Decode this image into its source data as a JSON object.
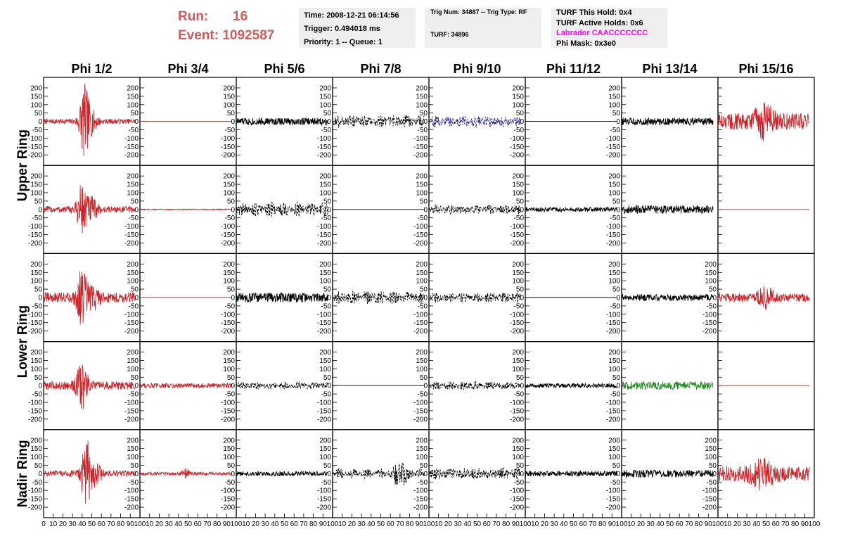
{
  "header": {
    "run_label": "Run:",
    "run_value": "16",
    "event_label": "Event:",
    "event_value": "1092587"
  },
  "info": {
    "time": "Time: 2008-12-21 06:14:56",
    "trigger": "Trigger: 0.494018 ms",
    "priority": "Priority: 1 -- Queue: 1",
    "trig_num": "Trig Num: 34887 -- Trig Type: RF",
    "turf": "TURF: 34896",
    "turf_this_hold": "TURF This Hold: 0x4",
    "turf_active_holds": "TURF Active Holds: 0x6",
    "labrador": "Labrador CAACCCCCCC",
    "phi_mask": "Phi Mask: 0x3e0"
  },
  "colors": {
    "red": "#c8282d",
    "black": "#000000",
    "blue": "#2b2b8c",
    "green": "#228b22",
    "accent": "#cd5c5c",
    "magenta": "#ff00ff"
  },
  "chart_data": {
    "type": "line",
    "columns": [
      "Phi 1/2",
      "Phi 3/4",
      "Phi 5/6",
      "Phi 7/8",
      "Phi 9/10",
      "Phi 11/12",
      "Phi 13/14",
      "Phi 15/16"
    ],
    "rows": [
      "Upper Ring",
      "Upper Ring",
      "Lower Ring",
      "Lower Ring",
      "Nadir Ring"
    ],
    "row_labels": [
      {
        "text": "Upper Ring",
        "rows": [
          0,
          1
        ]
      },
      {
        "text": "Lower Ring",
        "rows": [
          2,
          3
        ]
      },
      {
        "text": "Nadir Ring",
        "rows": [
          4,
          4
        ]
      }
    ],
    "xlim": [
      0,
      100
    ],
    "ylim": [
      -225,
      225
    ],
    "y_ticks": [
      -200,
      -150,
      -100,
      -50,
      0,
      50,
      100,
      150,
      200
    ],
    "x_ticks": [
      0,
      10,
      20,
      30,
      40,
      50,
      60,
      70,
      80,
      90,
      100
    ],
    "x_tick_labels": [
      [
        "0",
        "10",
        "20",
        "30",
        "40",
        "50",
        "60",
        "70",
        "80",
        "90",
        "100"
      ],
      [
        "10",
        "20",
        "30",
        "40",
        "50",
        "60",
        "70",
        "80",
        "90",
        "100"
      ],
      [
        "10",
        "20",
        "30",
        "40",
        "50",
        "60",
        "70",
        "80",
        "90",
        "100"
      ],
      [
        "10",
        "20",
        "30",
        "40",
        "50",
        "60",
        "70",
        "80",
        "90",
        "100"
      ],
      [
        "10",
        "20",
        "30",
        "40",
        "50",
        "60",
        "70",
        "80",
        "90",
        "100"
      ],
      [
        "10",
        "20",
        "30",
        "40",
        "50",
        "60",
        "70",
        "80",
        "90",
        "100"
      ],
      [
        "10",
        "20",
        "30",
        "40",
        "50",
        "60",
        "70",
        "80",
        "90",
        "100"
      ],
      [
        "10",
        "20",
        "30",
        "40",
        "50",
        "60",
        "70",
        "80",
        "90",
        "100"
      ]
    ],
    "x_extent": [
      0,
      95
    ],
    "hidden_y_labels": [
      [
        0,
        7
      ],
      [
        1,
        7
      ],
      [
        3,
        7
      ]
    ],
    "panels": [
      [
        {
          "color": "red",
          "style": "solid",
          "amp": 15,
          "burst": {
            "center": 42,
            "width": 5,
            "amp": 210
          },
          "burst2": {
            "center": 50,
            "width": 6,
            "amp": 60
          }
        },
        {
          "color": "red",
          "style": "solid",
          "amp": 0
        },
        {
          "color": "black",
          "style": "solid",
          "amp": 22
        },
        {
          "color": "black",
          "style": "dashed",
          "amp": 40,
          "mod": 0.6
        },
        {
          "color": "blue",
          "style": "dashed",
          "amp": 35,
          "mod": 0.5
        },
        {
          "color": "black",
          "style": "solid",
          "amp": 0
        },
        {
          "color": "black",
          "style": "solid",
          "amp": 22
        },
        {
          "color": "red",
          "style": "solid",
          "amp": 50,
          "burst": {
            "center": 48,
            "width": 10,
            "amp": 75
          }
        }
      ],
      [
        {
          "color": "red",
          "style": "solid",
          "amp": 20,
          "burst": {
            "center": 40,
            "width": 5,
            "amp": 170
          },
          "burst2": {
            "center": 50,
            "width": 6,
            "amp": 60
          }
        },
        {
          "color": "red",
          "style": "solid",
          "amp": 3
        },
        {
          "color": "black",
          "style": "dashed",
          "amp": 45,
          "mod": 0.7
        },
        {
          "color": "black",
          "style": "solid",
          "amp": 0
        },
        {
          "color": "black",
          "style": "dashed",
          "amp": 28,
          "mod": 0.5
        },
        {
          "color": "black",
          "style": "solid",
          "amp": 14
        },
        {
          "color": "black",
          "style": "solid",
          "amp": 25
        },
        {
          "color": "red",
          "style": "solid",
          "amp": 0
        }
      ],
      [
        {
          "color": "red",
          "style": "solid",
          "amp": 30,
          "burst": {
            "center": 40,
            "width": 6,
            "amp": 150
          },
          "burst2": {
            "center": 52,
            "width": 6,
            "amp": 60
          }
        },
        {
          "color": "red",
          "style": "solid",
          "amp": 0
        },
        {
          "color": "black",
          "style": "solid",
          "amp": 28
        },
        {
          "color": "black",
          "style": "dashed",
          "amp": 40,
          "mod": 0.6
        },
        {
          "color": "black",
          "style": "dashed",
          "amp": 30,
          "mod": 0.5
        },
        {
          "color": "black",
          "style": "solid",
          "amp": 0
        },
        {
          "color": "black",
          "style": "solid",
          "amp": 20
        },
        {
          "color": "red",
          "style": "solid",
          "amp": 25,
          "burst": {
            "center": 50,
            "width": 8,
            "amp": 55
          }
        }
      ],
      [
        {
          "color": "red",
          "style": "solid",
          "amp": 25,
          "burst": {
            "center": 40,
            "width": 6,
            "amp": 120
          }
        },
        {
          "color": "red",
          "style": "solid",
          "amp": 15
        },
        {
          "color": "black",
          "style": "dashed",
          "amp": 22,
          "mod": 0.4
        },
        {
          "color": "black",
          "style": "solid",
          "amp": 0
        },
        {
          "color": "black",
          "style": "dashed",
          "amp": 24,
          "mod": 0.4
        },
        {
          "color": "black",
          "style": "solid",
          "amp": 13
        },
        {
          "color": "green",
          "style": "solid",
          "amp": 25
        },
        {
          "color": "red",
          "style": "solid",
          "amp": 0
        }
      ],
      [
        {
          "color": "red",
          "style": "solid",
          "amp": 18,
          "burst": {
            "center": 44,
            "width": 5,
            "amp": 200
          },
          "burst2": {
            "center": 54,
            "width": 6,
            "amp": 60
          }
        },
        {
          "color": "red",
          "style": "solid",
          "amp": 10,
          "burst": {
            "center": 47,
            "width": 3,
            "amp": 40
          }
        },
        {
          "color": "black",
          "style": "solid",
          "amp": 14
        },
        {
          "color": "black",
          "style": "dashed",
          "amp": 30,
          "mod": 0.7,
          "burst": {
            "center": 70,
            "width": 8,
            "amp": 60
          }
        },
        {
          "color": "black",
          "style": "dashed",
          "amp": 35,
          "mod": 0.5
        },
        {
          "color": "black",
          "style": "solid",
          "amp": 16
        },
        {
          "color": "black",
          "style": "solid",
          "amp": 22
        },
        {
          "color": "red",
          "style": "solid",
          "amp": 45,
          "burst": {
            "center": 45,
            "width": 12,
            "amp": 60
          }
        }
      ]
    ]
  }
}
